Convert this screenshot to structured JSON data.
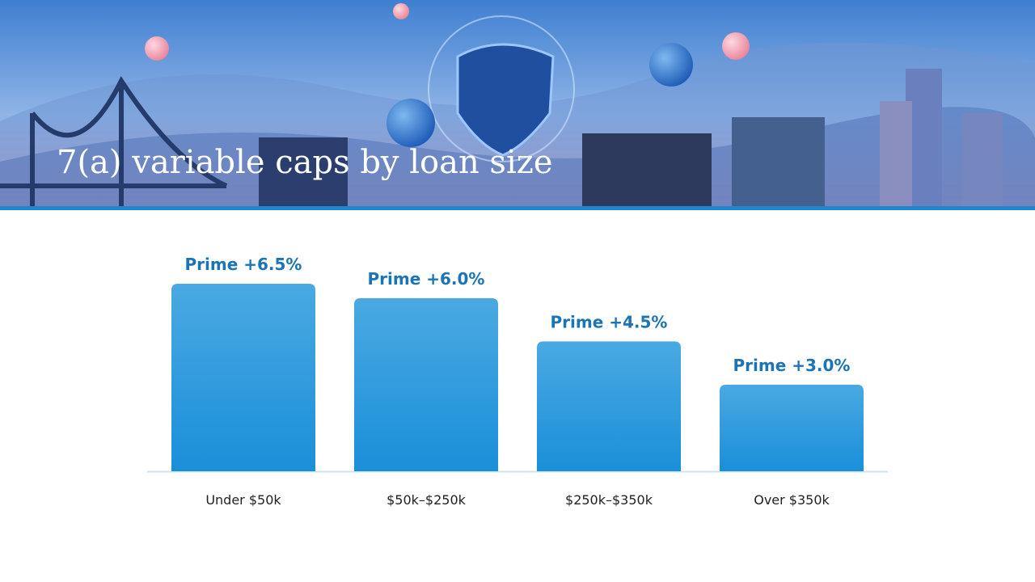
{
  "chart_data": {
    "type": "bar",
    "title": "7(a) variable caps by loan size",
    "categories": [
      "Under $50k",
      "$50k–$250k",
      "$250k–$350k",
      "Over $350k"
    ],
    "values": [
      6.5,
      6.0,
      4.5,
      3.0
    ],
    "value_labels": [
      "Prime +6.5%",
      "Prime +6.0%",
      "Prime +4.5%",
      "Prime +3.0%"
    ],
    "color": "#2a9be0"
  }
}
